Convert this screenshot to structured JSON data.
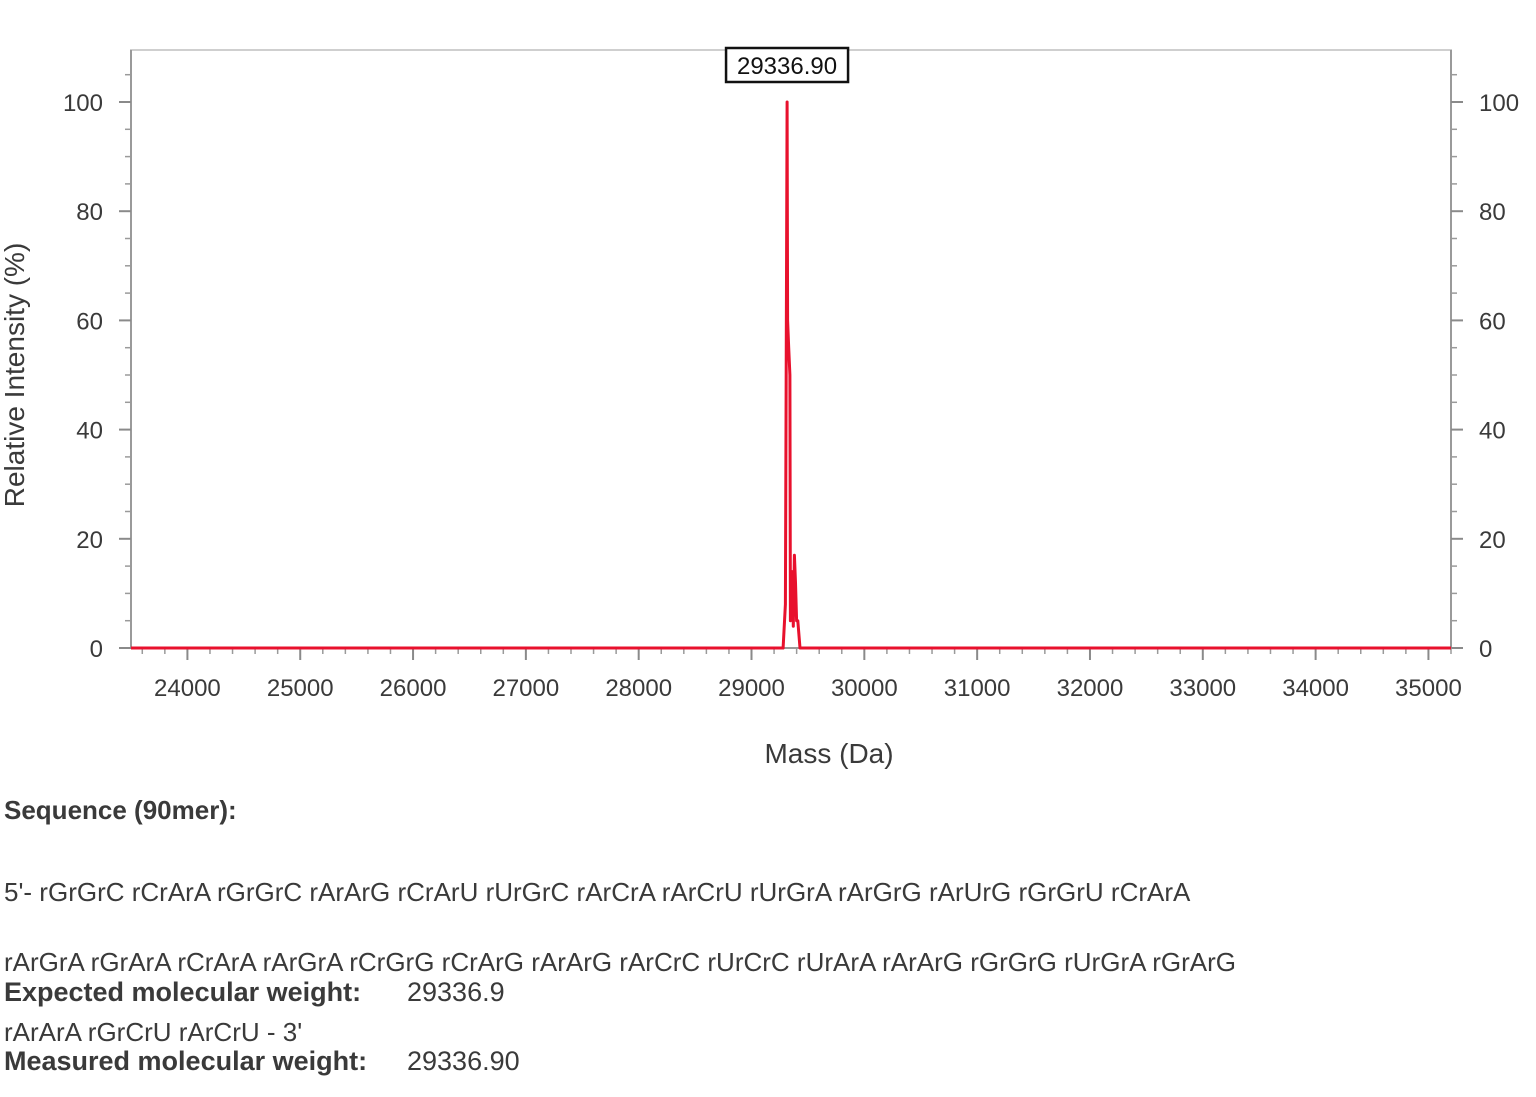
{
  "chart_data": {
    "type": "line",
    "title": "",
    "xlabel": "Mass (Da)",
    "ylabel": "Relative Intensity (%)",
    "xlim": [
      23500,
      35200
    ],
    "ylim": [
      0,
      110
    ],
    "x_ticks": [
      "24000",
      "25000",
      "26000",
      "27000",
      "28000",
      "29000",
      "30000",
      "31000",
      "32000",
      "33000",
      "34000",
      "35000"
    ],
    "y_ticks": [
      "0",
      "20",
      "40",
      "60",
      "80",
      "100"
    ],
    "series": [
      {
        "color": "#e8112d",
        "points": [
          [
            23500,
            0
          ],
          [
            29280,
            0
          ],
          [
            29300,
            8
          ],
          [
            29315,
            100
          ],
          [
            29320,
            60
          ],
          [
            29330,
            55
          ],
          [
            29340,
            50
          ],
          [
            29345,
            5
          ],
          [
            29360,
            14
          ],
          [
            29370,
            4
          ],
          [
            29380,
            17
          ],
          [
            29390,
            12
          ],
          [
            29400,
            5
          ],
          [
            29410,
            5
          ],
          [
            29430,
            0
          ],
          [
            35200,
            0
          ]
        ]
      }
    ],
    "annotations": [
      {
        "text": "29336.90",
        "x": 29315,
        "y": 100
      }
    ],
    "grid": false,
    "legend": "none"
  },
  "sequence": {
    "heading": "Sequence (90mer):",
    "lines": [
      "5'- rGrGrC rCrArA rGrGrC rArArG rCrArU rUrGrC rArCrA rArCrU rUrGrA rArGrG rArUrG rGrGrU rCrArA",
      "rArGrA rGrArA rCrArA rArGrA rCrGrG rCrArG rArArG rArCrC rUrCrC rUrArA rArArG rGrGrG rUrGrA rGrArG",
      "rArArA rGrCrU rArCrU - 3'"
    ]
  },
  "expected": {
    "label": "Expected molecular weight:",
    "value": "29336.9"
  },
  "measured": {
    "label": "Measured molecular weight:",
    "value": "29336.90"
  }
}
